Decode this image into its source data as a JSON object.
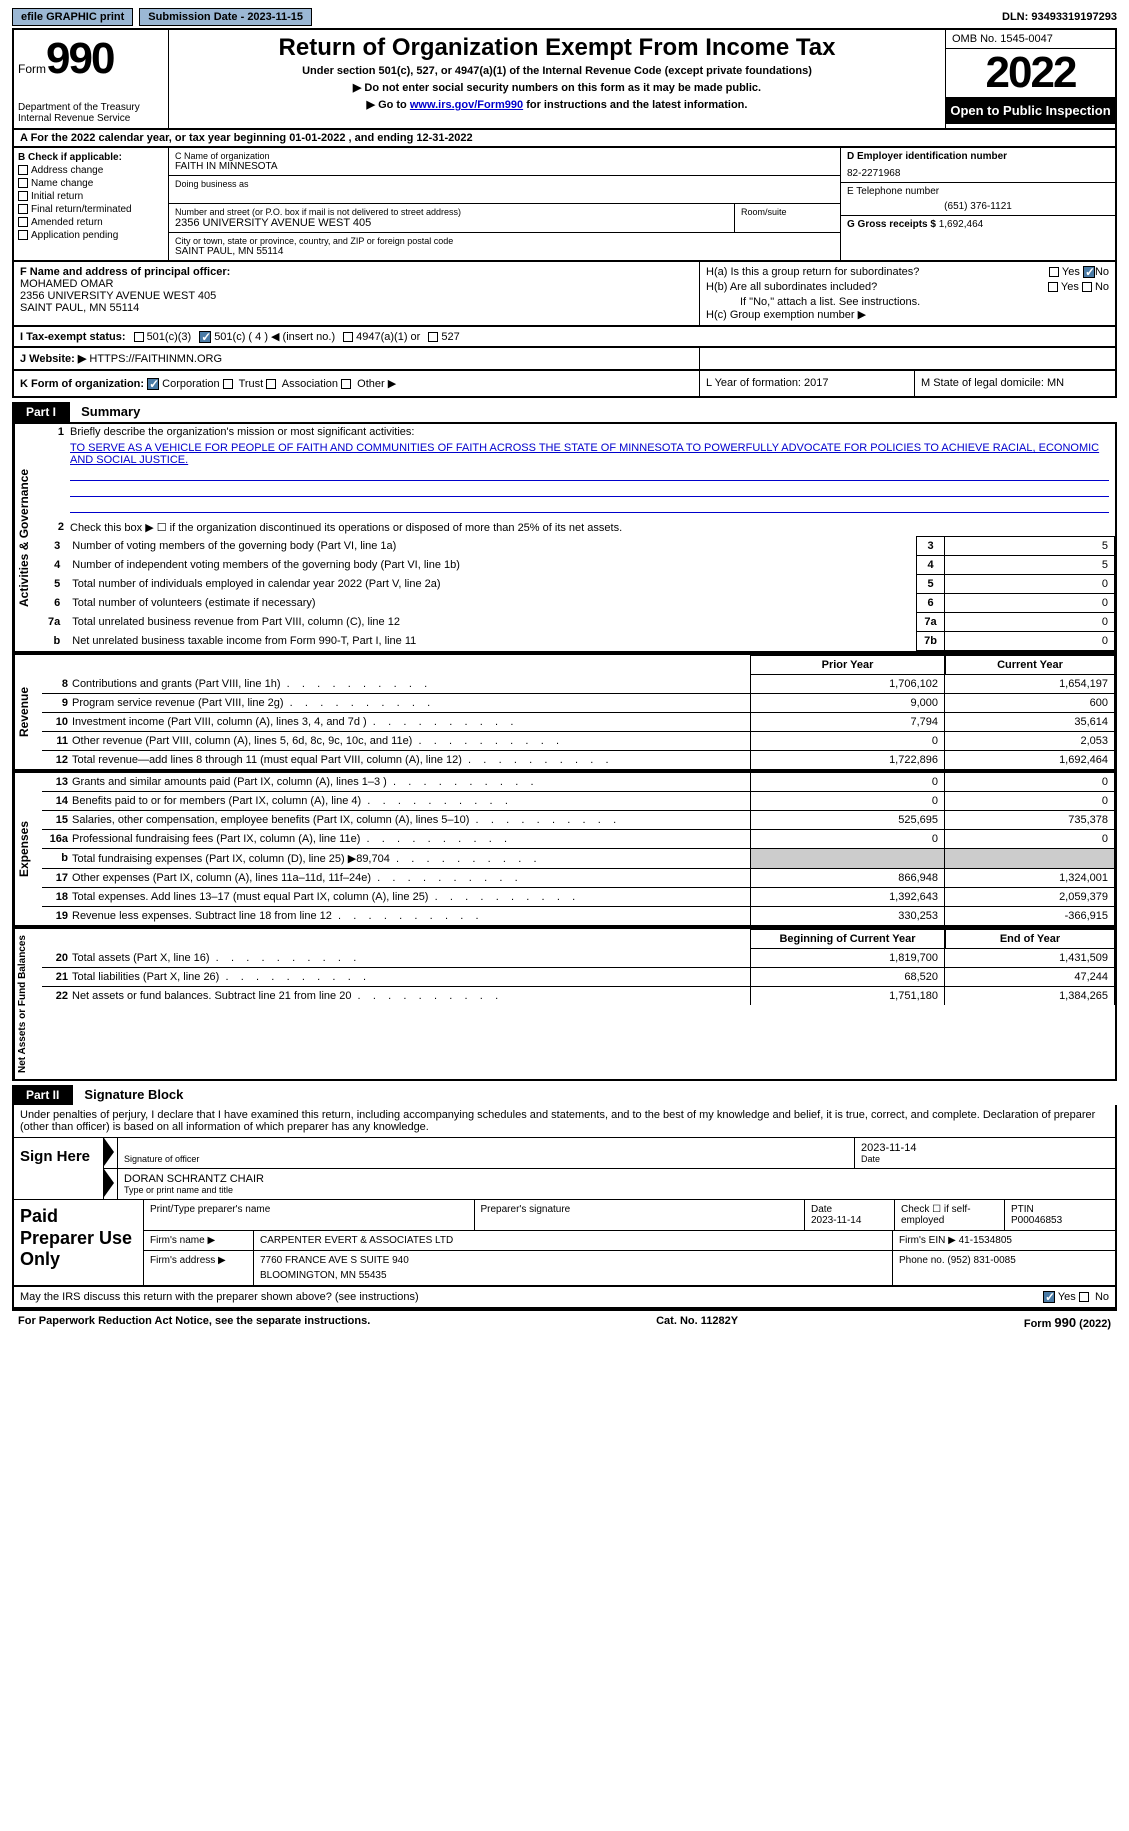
{
  "topbar": {
    "efile": "efile GRAPHIC print",
    "submission": "Submission Date - 2023-11-15",
    "dln": "DLN: 93493319197293"
  },
  "header": {
    "form_word": "Form",
    "form_num": "990",
    "dept": "Department of the Treasury\nInternal Revenue Service",
    "title": "Return of Organization Exempt From Income Tax",
    "subtitle": "Under section 501(c), 527, or 4947(a)(1) of the Internal Revenue Code (except private foundations)",
    "note1": "▶ Do not enter social security numbers on this form as it may be made public.",
    "note2_pre": "▶ Go to ",
    "note2_link": "www.irs.gov/Form990",
    "note2_post": " for instructions and the latest information.",
    "omb": "OMB No. 1545-0047",
    "year": "2022",
    "open": "Open to Public Inspection"
  },
  "row_a": "A  For the 2022 calendar year, or tax year beginning 01-01-2022    , and ending 12-31-2022",
  "box_b": {
    "label": "B Check if applicable:",
    "items": [
      "Address change",
      "Name change",
      "Initial return",
      "Final return/terminated",
      "Amended return",
      "Application pending"
    ]
  },
  "box_c": {
    "name_label": "C Name of organization",
    "name": "FAITH IN MINNESOTA",
    "dba_label": "Doing business as",
    "addr_label": "Number and street (or P.O. box if mail is not delivered to street address)",
    "room_label": "Room/suite",
    "addr": "2356 UNIVERSITY AVENUE WEST 405",
    "city_label": "City or town, state or province, country, and ZIP or foreign postal code",
    "city": "SAINT PAUL, MN  55114"
  },
  "box_d": {
    "ein_label": "D Employer identification number",
    "ein": "82-2271968",
    "tel_label": "E Telephone number",
    "tel": "(651) 376-1121",
    "gross_label": "G Gross receipts $",
    "gross": "1,692,464"
  },
  "box_f": {
    "label": "F  Name and address of principal officer:",
    "name": "MOHAMED OMAR",
    "addr1": "2356 UNIVERSITY AVENUE WEST 405",
    "addr2": "SAINT PAUL, MN  55114"
  },
  "box_h": {
    "ha": "H(a)  Is this a group return for subordinates?",
    "hb": "H(b)  Are all subordinates included?",
    "hb_note": "If \"No,\" attach a list. See instructions.",
    "hc": "H(c)  Group exemption number ▶",
    "yes": "Yes",
    "no": "No"
  },
  "row_i": {
    "label": "I    Tax-exempt status:",
    "o1": "501(c)(3)",
    "o2": "501(c) ( 4 ) ◀ (insert no.)",
    "o3": "4947(a)(1) or",
    "o4": "527"
  },
  "row_j": {
    "label": "J   Website: ▶",
    "url": "HTTPS://FAITHINMN.ORG"
  },
  "row_k": {
    "label": "K Form of organization:",
    "o1": "Corporation",
    "o2": "Trust",
    "o3": "Association",
    "o4": "Other ▶",
    "l": "L Year of formation: 2017",
    "m": "M State of legal domicile: MN"
  },
  "part1": {
    "hdr": "Part I",
    "title": "Summary"
  },
  "summary": {
    "vtab1": "Activities & Governance",
    "l1": "Briefly describe the organization's mission or most significant activities:",
    "mission": "TO SERVE AS A VEHICLE FOR PEOPLE OF FAITH AND COMMUNITIES OF FAITH ACROSS THE STATE OF MINNESOTA TO POWERFULLY ADVOCATE FOR POLICIES TO ACHIEVE RACIAL, ECONOMIC AND SOCIAL JUSTICE.",
    "l2": "Check this box ▶ ☐  if the organization discontinued its operations or disposed of more than 25% of its net assets.",
    "lines": [
      {
        "n": "3",
        "d": "Number of voting members of the governing body (Part VI, line 1a)",
        "k": "3",
        "v": "5"
      },
      {
        "n": "4",
        "d": "Number of independent voting members of the governing body (Part VI, line 1b)",
        "k": "4",
        "v": "5"
      },
      {
        "n": "5",
        "d": "Total number of individuals employed in calendar year 2022 (Part V, line 2a)",
        "k": "5",
        "v": "0"
      },
      {
        "n": "6",
        "d": "Total number of volunteers (estimate if necessary)",
        "k": "6",
        "v": "0"
      },
      {
        "n": "7a",
        "d": "Total unrelated business revenue from Part VIII, column (C), line 12",
        "k": "7a",
        "v": "0"
      },
      {
        "n": "",
        "d": "Net unrelated business taxable income from Form 990-T, Part I, line 11",
        "k": "7b",
        "v": "0"
      }
    ],
    "vtab2": "Revenue",
    "hdr_prior": "Prior Year",
    "hdr_curr": "Current Year",
    "rev": [
      {
        "n": "8",
        "d": "Contributions and grants (Part VIII, line 1h)",
        "p": "1,706,102",
        "c": "1,654,197"
      },
      {
        "n": "9",
        "d": "Program service revenue (Part VIII, line 2g)",
        "p": "9,000",
        "c": "600"
      },
      {
        "n": "10",
        "d": "Investment income (Part VIII, column (A), lines 3, 4, and 7d )",
        "p": "7,794",
        "c": "35,614"
      },
      {
        "n": "11",
        "d": "Other revenue (Part VIII, column (A), lines 5, 6d, 8c, 9c, 10c, and 11e)",
        "p": "0",
        "c": "2,053"
      },
      {
        "n": "12",
        "d": "Total revenue—add lines 8 through 11 (must equal Part VIII, column (A), line 12)",
        "p": "1,722,896",
        "c": "1,692,464"
      }
    ],
    "vtab3": "Expenses",
    "exp": [
      {
        "n": "13",
        "d": "Grants and similar amounts paid (Part IX, column (A), lines 1–3 )",
        "p": "0",
        "c": "0"
      },
      {
        "n": "14",
        "d": "Benefits paid to or for members (Part IX, column (A), line 4)",
        "p": "0",
        "c": "0"
      },
      {
        "n": "15",
        "d": "Salaries, other compensation, employee benefits (Part IX, column (A), lines 5–10)",
        "p": "525,695",
        "c": "735,378"
      },
      {
        "n": "16a",
        "d": "Professional fundraising fees (Part IX, column (A), line 11e)",
        "p": "0",
        "c": "0"
      },
      {
        "n": "b",
        "d": "Total fundraising expenses (Part IX, column (D), line 25) ▶89,704",
        "p": "",
        "c": "",
        "gray": true
      },
      {
        "n": "17",
        "d": "Other expenses (Part IX, column (A), lines 11a–11d, 11f–24e)",
        "p": "866,948",
        "c": "1,324,001"
      },
      {
        "n": "18",
        "d": "Total expenses. Add lines 13–17 (must equal Part IX, column (A), line 25)",
        "p": "1,392,643",
        "c": "2,059,379"
      },
      {
        "n": "19",
        "d": "Revenue less expenses. Subtract line 18 from line 12",
        "p": "330,253",
        "c": "-366,915"
      }
    ],
    "vtab4": "Net Assets or Fund Balances",
    "hdr_beg": "Beginning of Current Year",
    "hdr_end": "End of Year",
    "net": [
      {
        "n": "20",
        "d": "Total assets (Part X, line 16)",
        "p": "1,819,700",
        "c": "1,431,509"
      },
      {
        "n": "21",
        "d": "Total liabilities (Part X, line 26)",
        "p": "68,520",
        "c": "47,244"
      },
      {
        "n": "22",
        "d": "Net assets or fund balances. Subtract line 21 from line 20",
        "p": "1,751,180",
        "c": "1,384,265"
      }
    ]
  },
  "part2": {
    "hdr": "Part II",
    "title": "Signature Block"
  },
  "sig": {
    "decl": "Under penalties of perjury, I declare that I have examined this return, including accompanying schedules and statements, and to the best of my knowledge and belief, it is true, correct, and complete. Declaration of preparer (other than officer) is based on all information of which preparer has any knowledge.",
    "sign_here": "Sign Here",
    "sig_officer": "Signature of officer",
    "sig_date": "2023-11-14",
    "date_label": "Date",
    "name": "DORAN SCHRANTZ  CHAIR",
    "name_label": "Type or print name and title",
    "paid": "Paid Preparer Use Only",
    "prep_name_label": "Print/Type preparer's name",
    "prep_sig_label": "Preparer's signature",
    "prep_date_label": "Date",
    "prep_date": "2023-11-14",
    "check_self": "Check ☐ if self-employed",
    "ptin_label": "PTIN",
    "ptin": "P00046853",
    "firm_name_label": "Firm's name     ▶",
    "firm_name": "CARPENTER EVERT & ASSOCIATES LTD",
    "firm_ein_label": "Firm's EIN ▶",
    "firm_ein": "41-1534805",
    "firm_addr_label": "Firm's address ▶",
    "firm_addr1": "7760 FRANCE AVE S SUITE 940",
    "firm_addr2": "BLOOMINGTON, MN  55435",
    "phone_label": "Phone no.",
    "phone": "(952) 831-0085"
  },
  "footer": {
    "discuss": "May the IRS discuss this return with the preparer shown above? (see instructions)",
    "yes": "Yes",
    "no": "No",
    "pra": "For Paperwork Reduction Act Notice, see the separate instructions.",
    "cat": "Cat. No. 11282Y",
    "form": "Form 990 (2022)"
  }
}
